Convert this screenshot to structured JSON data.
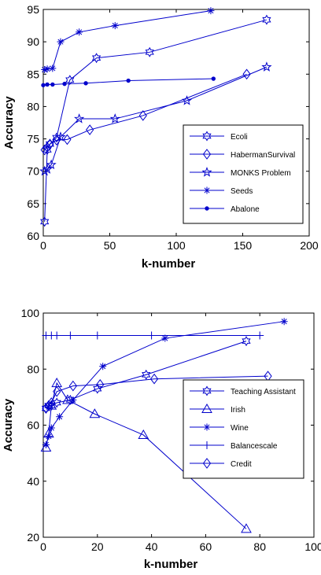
{
  "chart_data": [
    {
      "type": "line",
      "xlabel": "k-number",
      "ylabel": "Accuracy",
      "xlim": [
        0,
        200
      ],
      "ylim": [
        60,
        95
      ],
      "xticks": [
        "0",
        "50",
        "100",
        "150",
        "200"
      ],
      "yticks": [
        "60",
        "65",
        "70",
        "75",
        "80",
        "85",
        "90",
        "95"
      ],
      "grid": false,
      "legend_position": "bottom-right",
      "line_color": "#0000cc",
      "series": [
        {
          "name": "Ecoli",
          "marker": "hexagram",
          "x": [
            1,
            3,
            5,
            10,
            20,
            40,
            80,
            168
          ],
          "y": [
            62.2,
            73.3,
            74.2,
            75.2,
            84.1,
            87.5,
            88.4,
            93.4
          ]
        },
        {
          "name": "HabermanSurvival",
          "marker": "diamond",
          "x": [
            1,
            3,
            5,
            10,
            18,
            35,
            75,
            153
          ],
          "y": [
            73.3,
            73.7,
            74.2,
            74.8,
            74.9,
            76.4,
            78.6,
            85.0
          ]
        },
        {
          "name": "MONKS Problem",
          "marker": "pentagram",
          "x": [
            1,
            3,
            6,
            13,
            27,
            54,
            108,
            168
          ],
          "y": [
            70.0,
            70.3,
            71.0,
            75.3,
            78.1,
            78.1,
            80.9,
            86.1
          ]
        },
        {
          "name": "Seeds",
          "marker": "asterisk",
          "x": [
            1,
            3,
            7,
            13,
            27,
            54,
            126
          ],
          "y": [
            85.7,
            85.8,
            85.9,
            90.0,
            91.5,
            92.5,
            94.8
          ]
        },
        {
          "name": "Abalone",
          "marker": "dot",
          "x": [
            0,
            3,
            7,
            16,
            32,
            64,
            128
          ],
          "y": [
            83.3,
            83.4,
            83.4,
            83.5,
            83.6,
            84.0,
            84.3
          ]
        }
      ]
    },
    {
      "type": "line",
      "xlabel": "k-number",
      "ylabel": "Accuracy",
      "xlim": [
        0,
        100
      ],
      "ylim": [
        20,
        100
      ],
      "xticks": [
        "0",
        "20",
        "40",
        "60",
        "80",
        "100"
      ],
      "yticks": [
        "20",
        "40",
        "60",
        "80",
        "100"
      ],
      "grid": false,
      "legend_position": "right",
      "line_color": "#0000cc",
      "series": [
        {
          "name": "Teaching Assistant",
          "marker": "hexagram",
          "x": [
            1,
            2,
            3,
            5,
            10,
            20,
            38,
            75
          ],
          "y": [
            66,
            67,
            67,
            68,
            69,
            73,
            78,
            90
          ]
        },
        {
          "name": "Irish",
          "marker": "triangle",
          "x": [
            1,
            2,
            3,
            5,
            9,
            19,
            37,
            75
          ],
          "y": [
            52,
            57,
            67,
            75,
            69,
            64,
            56.5,
            23
          ]
        },
        {
          "name": "Wine",
          "marker": "asterisk",
          "x": [
            1,
            2,
            3,
            6,
            11,
            22,
            45,
            89
          ],
          "y": [
            53,
            56,
            59,
            63,
            69,
            81,
            91,
            97
          ]
        },
        {
          "name": "Balancescale",
          "marker": "plus",
          "x": [
            1,
            3,
            5,
            10,
            20,
            40,
            80
          ],
          "y": [
            92,
            92,
            92,
            92,
            92,
            92,
            92
          ]
        },
        {
          "name": "Credit",
          "marker": "diamond",
          "x": [
            1,
            2,
            3,
            5,
            11,
            21,
            41,
            83
          ],
          "y": [
            66,
            67,
            68,
            72,
            74,
            74.5,
            76.5,
            77.5
          ]
        }
      ]
    }
  ]
}
